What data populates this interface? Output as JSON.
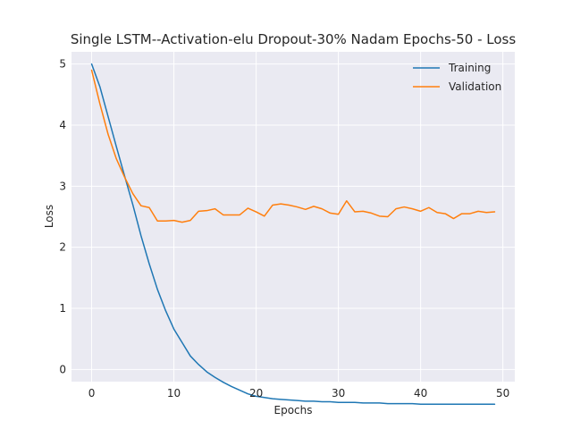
{
  "chart_data": {
    "type": "line",
    "title": "Single LSTM--Activation-elu Dropout-30% Nadam Epochs-50 - Loss",
    "xlabel": "Epochs",
    "ylabel": "Loss",
    "xlim": [
      -2.45,
      51.45
    ],
    "ylim": [
      -0.2,
      5.2
    ],
    "xticks": [
      0,
      10,
      20,
      30,
      40,
      50
    ],
    "yticks": [
      0,
      1,
      2,
      3,
      4,
      5
    ],
    "grid": true,
    "legend_position": "top-right",
    "x": [
      0,
      1,
      2,
      3,
      4,
      5,
      6,
      7,
      8,
      9,
      10,
      11,
      12,
      13,
      14,
      15,
      16,
      17,
      18,
      19,
      20,
      21,
      22,
      23,
      24,
      25,
      26,
      27,
      28,
      29,
      30,
      31,
      32,
      33,
      34,
      35,
      36,
      37,
      38,
      39,
      40,
      41,
      42,
      43,
      44,
      45,
      46,
      47,
      48,
      49
    ],
    "series": [
      {
        "name": "Training",
        "color": "#1f77b4",
        "values": [
          5.0,
          4.63,
          4.14,
          3.65,
          3.17,
          2.7,
          2.19,
          1.73,
          1.31,
          0.96,
          0.66,
          0.44,
          0.22,
          0.08,
          -0.04,
          -0.13,
          -0.21,
          -0.28,
          -0.34,
          -0.4,
          -0.44,
          -0.46,
          -0.48,
          -0.49,
          -0.5,
          -0.51,
          -0.52,
          -0.52,
          -0.53,
          -0.53,
          -0.54,
          -0.54,
          -0.54,
          -0.55,
          -0.55,
          -0.55,
          -0.56,
          -0.56,
          -0.56,
          -0.56,
          -0.57,
          -0.57,
          -0.57,
          -0.57,
          -0.57,
          -0.57,
          -0.57,
          -0.57,
          -0.57,
          -0.57
        ]
      },
      {
        "name": "Validation",
        "color": "#ff7f0e",
        "values": [
          4.9,
          4.35,
          3.85,
          3.45,
          3.15,
          2.88,
          2.68,
          2.65,
          2.43,
          2.43,
          2.44,
          2.41,
          2.44,
          2.59,
          2.6,
          2.63,
          2.53,
          2.53,
          2.53,
          2.64,
          2.58,
          2.51,
          2.69,
          2.71,
          2.69,
          2.66,
          2.62,
          2.67,
          2.63,
          2.56,
          2.54,
          2.76,
          2.58,
          2.59,
          2.56,
          2.51,
          2.5,
          2.63,
          2.66,
          2.63,
          2.59,
          2.65,
          2.57,
          2.55,
          2.47,
          2.55,
          2.55,
          2.59,
          2.57,
          2.58
        ]
      }
    ]
  }
}
